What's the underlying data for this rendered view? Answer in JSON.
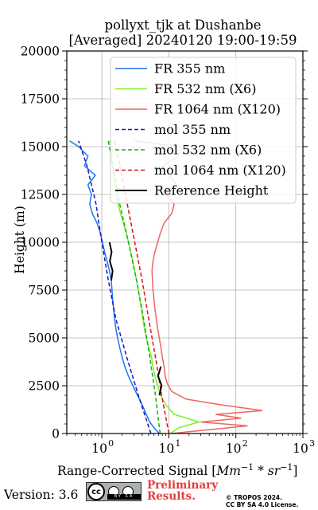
{
  "figure": {
    "title_line1": "pollyxt_tjk at Dushanbe",
    "title_line2": "[Averaged] 20240120 19:00-19:59",
    "version": "Version: 3.6",
    "preliminary": [
      "Preliminary",
      "Results."
    ],
    "copyright": [
      "© TROPOS 2024.",
      "CC BY SA 4.0 License."
    ],
    "license_badge": {
      "icon": "cc-by-sa-icon",
      "strip_text": "BY SA",
      "badge_text": "cc"
    }
  },
  "chart_data": {
    "type": "line",
    "xlabel": "Range-Corrected Signal [Mm^-1 * sr^-1]",
    "ylabel": "Height (m)",
    "xscale": "log",
    "xlim": [
      0.3,
      1000
    ],
    "ylim": [
      0,
      20000
    ],
    "x_ticks": [
      {
        "value": 1,
        "label": "10",
        "exp": "0"
      },
      {
        "value": 10,
        "label": "10",
        "exp": "1"
      },
      {
        "value": 100,
        "label": "10",
        "exp": "2"
      },
      {
        "value": 1000,
        "label": "10",
        "exp": "3"
      }
    ],
    "y_ticks": [
      0,
      2500,
      5000,
      7500,
      10000,
      12500,
      15000,
      17500,
      20000
    ],
    "grid": true,
    "legend_position": "upper right",
    "series": [
      {
        "name": "FR 355 nm",
        "color": "#1f77e8",
        "style": "solid",
        "height": [
          0,
          300,
          600,
          1000,
          1500,
          2000,
          2500,
          3000,
          3500,
          4000,
          4500,
          5000,
          5500,
          6000,
          6500,
          7000,
          7500,
          8000,
          8500,
          9000,
          9500,
          10000,
          10500,
          11000,
          11500,
          12000,
          12500,
          13000,
          13500,
          14000,
          14500,
          15000,
          15300
        ],
        "value": [
          7.2,
          6.0,
          5.2,
          4.6,
          4.0,
          3.4,
          2.9,
          2.5,
          2.2,
          2.0,
          1.85,
          1.72,
          1.62,
          1.55,
          1.5,
          1.45,
          1.42,
          1.38,
          1.3,
          1.2,
          1.1,
          1.02,
          0.95,
          0.85,
          0.72,
          0.66,
          0.7,
          0.62,
          0.8,
          0.55,
          0.62,
          0.45,
          0.33
        ]
      },
      {
        "name": "FR 532 nm (X6)",
        "color": "#7ef020",
        "style": "solid",
        "height": [
          0,
          300,
          600,
          1000,
          1500,
          2000,
          2500,
          3000,
          3500,
          4000,
          4500,
          5000,
          5500,
          6000,
          6500,
          7000,
          7500,
          8000,
          8500,
          9000,
          9500,
          10000,
          10500,
          11000,
          11500,
          12000,
          12500,
          13000,
          13500,
          14000,
          14500,
          15000,
          15300
        ],
        "value": [
          10.5,
          14,
          28,
          12,
          9,
          7.5,
          6.8,
          6.2,
          5.8,
          5.5,
          5.0,
          4.6,
          4.3,
          4.1,
          3.9,
          3.7,
          3.5,
          3.3,
          3.1,
          2.9,
          2.7,
          2.5,
          2.3,
          2.1,
          1.9,
          1.75,
          1.6,
          1.55,
          1.5,
          1.45,
          1.4,
          1.45,
          1.3
        ]
      },
      {
        "name": "FR 1064 nm (X120)",
        "color": "#f06464",
        "style": "solid",
        "height": [
          0,
          200,
          400,
          600,
          800,
          1000,
          1200,
          1500,
          1800,
          2200,
          2600,
          3000,
          3500,
          4000,
          4500,
          5000,
          5500,
          6000,
          6500,
          7000,
          7500,
          8000,
          8500,
          9000,
          9500,
          10000,
          10500,
          11000,
          11500,
          12000,
          12500,
          13000,
          13500,
          14000,
          14500,
          15000,
          15300
        ],
        "value": [
          11,
          40,
          150,
          30,
          120,
          50,
          250,
          60,
          18,
          11,
          9.5,
          8.8,
          8.5,
          8.0,
          7.6,
          7.2,
          6.8,
          6.5,
          6.2,
          6.0,
          5.8,
          5.7,
          5.6,
          5.8,
          6.2,
          6.8,
          7.5,
          8.5,
          11,
          12,
          9,
          13,
          10,
          8,
          14,
          15,
          3
        ]
      },
      {
        "name": "mol 355 nm",
        "color": "#1515c8",
        "style": "dashed",
        "height": [
          0,
          2000,
          4000,
          6000,
          8000,
          10000,
          12000,
          14000,
          15300
        ],
        "value": [
          5.4,
          3.5,
          2.35,
          1.62,
          1.25,
          1.0,
          0.82,
          0.6,
          0.45
        ]
      },
      {
        "name": "mol 532 nm (X6)",
        "color": "#15b015",
        "style": "dashed",
        "height": [
          0,
          2000,
          4000,
          6000,
          8000,
          10000,
          12000,
          14000,
          15300
        ],
        "value": [
          7.4,
          6.3,
          5.2,
          4.2,
          3.3,
          2.5,
          1.85,
          1.45,
          1.25
        ]
      },
      {
        "name": "mol 1064 nm (X120)",
        "color": "#dd1010",
        "style": "dashed",
        "height": [
          0,
          2000,
          4000,
          6000,
          8000,
          10000,
          12000,
          14000,
          15300
        ],
        "value": [
          10.0,
          7.8,
          6.3,
          5.0,
          4.0,
          3.1,
          2.4,
          1.85,
          1.55
        ]
      },
      {
        "name": "Reference Height",
        "color": "#000000",
        "style": "solid",
        "segments": [
          {
            "height": [
              8000,
              8500,
              9000,
              9500,
              10000
            ],
            "value": [
              1.38,
              1.45,
              1.32,
              1.4,
              1.3
            ]
          },
          {
            "height": [
              2000,
              2500,
              3000,
              3500
            ],
            "value": [
              7.2,
              7.8,
              6.9,
              7.6
            ]
          }
        ]
      }
    ]
  }
}
